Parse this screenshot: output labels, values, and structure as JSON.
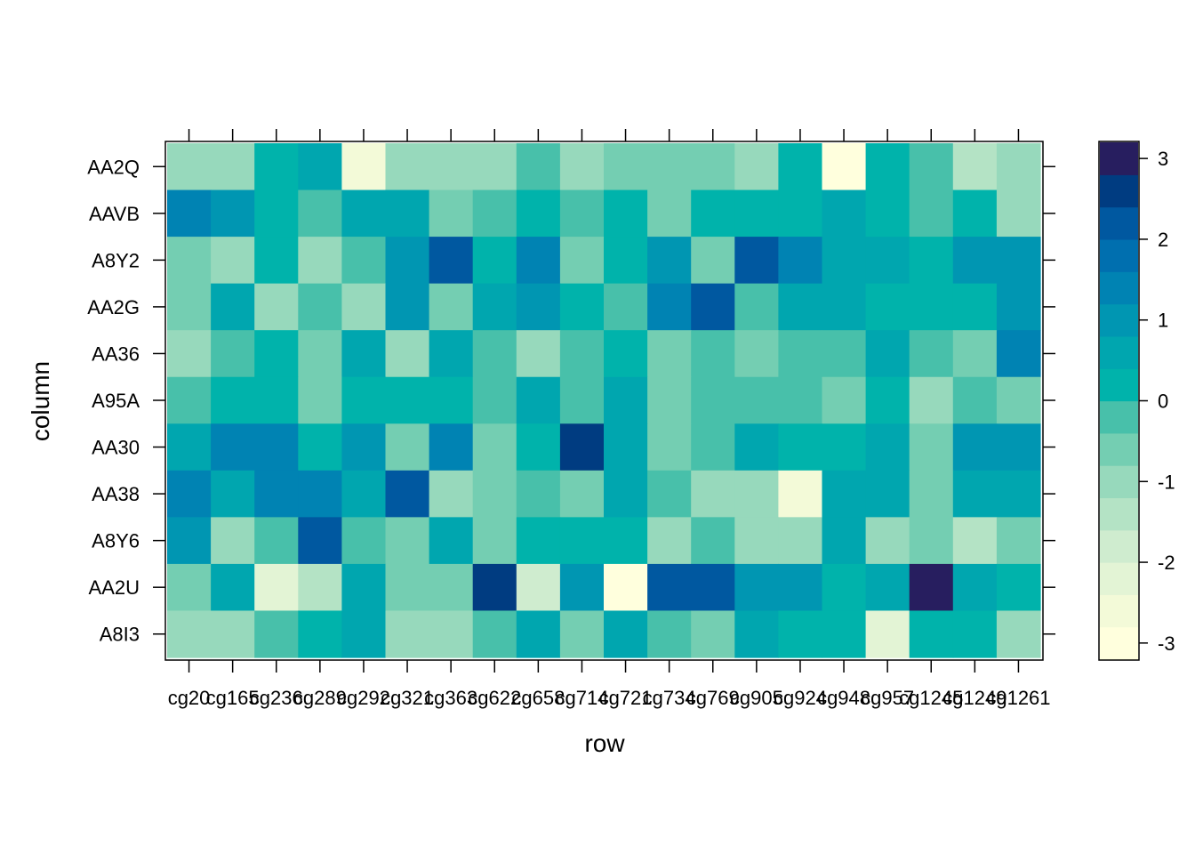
{
  "chart_data": {
    "type": "heatmap",
    "xlabel": "row",
    "ylabel": "column",
    "x_categories": [
      "cg20",
      "cg165",
      "cg236",
      "cg289",
      "cg292",
      "cg321",
      "cg363",
      "cg622",
      "cg658",
      "cg714",
      "cg721",
      "cg734",
      "cg769",
      "cg905",
      "cg924",
      "cg948",
      "cg957",
      "cg1245",
      "cg1249",
      "cg1261"
    ],
    "y_categories": [
      "AA2Q",
      "AAVB",
      "A8Y2",
      "AA2G",
      "AA36",
      "A95A",
      "AA30",
      "AA38",
      "A8Y6",
      "AA2U",
      "A8I3"
    ],
    "z_range": [
      -3.2,
      3.2
    ],
    "colorbar_ticks": [
      3,
      2,
      1,
      0,
      -1,
      -2,
      -3
    ],
    "colorbar_tick_labels": [
      "3",
      "2",
      "1",
      "0",
      "-1",
      "-2",
      "-3"
    ],
    "palette": [
      "#FFFFDD",
      "#F3FAD8",
      "#E3F4D5",
      "#CFECCF",
      "#B4E3C5",
      "#97D9BC",
      "#74CEB2",
      "#48C0AA",
      "#00B3AB",
      "#00A6AF",
      "#0096B2",
      "#0083B3",
      "#006FAF",
      "#0058A0",
      "#003C81",
      "#271E5F"
    ],
    "values": [
      [
        -0.9,
        -1.2,
        0.1,
        0.4,
        -2.7,
        -0.9,
        -0.9,
        -0.9,
        -0.3,
        -1.2,
        -0.6,
        -0.6,
        -0.6,
        -1.2,
        0.1,
        -3.0,
        0.1,
        -0.3,
        -1.5,
        -0.9
      ],
      [
        1.5,
        0.9,
        0.1,
        -0.3,
        0.4,
        0.4,
        -0.6,
        -0.3,
        0.1,
        -0.3,
        0.1,
        -0.6,
        0.1,
        0.1,
        0.1,
        0.4,
        0.1,
        -0.3,
        0.1,
        -0.9
      ],
      [
        -0.6,
        -0.9,
        0.1,
        -0.9,
        -0.3,
        0.9,
        2.0,
        0.1,
        1.5,
        -0.6,
        0.1,
        0.9,
        -0.6,
        2.0,
        1.5,
        0.4,
        0.4,
        0.1,
        0.9,
        0.9
      ],
      [
        -0.6,
        0.4,
        -1.2,
        -0.3,
        -0.9,
        0.9,
        -0.6,
        0.4,
        0.9,
        0.1,
        -0.3,
        1.5,
        2.0,
        -0.3,
        0.6,
        0.6,
        0.1,
        0.1,
        0.1,
        0.9
      ],
      [
        -0.9,
        -0.3,
        0.1,
        -0.6,
        0.4,
        -1.2,
        0.4,
        -0.3,
        -1.2,
        -0.3,
        0.1,
        -0.6,
        -0.3,
        -0.6,
        -0.3,
        -0.3,
        0.4,
        -0.3,
        -0.6,
        1.5
      ],
      [
        -0.3,
        0.1,
        0.1,
        -0.6,
        0.1,
        0.1,
        0.1,
        -0.3,
        0.4,
        -0.3,
        0.4,
        -0.6,
        -0.3,
        -0.3,
        -0.3,
        -0.6,
        0.1,
        -0.9,
        -0.3,
        -0.6
      ],
      [
        0.4,
        1.5,
        1.5,
        0.1,
        0.9,
        -0.6,
        1.5,
        -0.6,
        0.1,
        2.6,
        0.4,
        -0.6,
        -0.3,
        0.4,
        0.1,
        0.1,
        0.4,
        -0.6,
        0.9,
        0.9
      ],
      [
        1.5,
        0.4,
        1.5,
        1.5,
        0.4,
        2.0,
        -0.9,
        -0.6,
        -0.3,
        -0.6,
        0.4,
        -0.3,
        -1.2,
        -0.9,
        -2.7,
        0.4,
        0.4,
        -0.6,
        0.4,
        0.4
      ],
      [
        0.9,
        -0.9,
        -0.3,
        2.0,
        -0.3,
        -0.6,
        0.4,
        -0.6,
        0.1,
        0.1,
        0.1,
        -0.9,
        -0.3,
        -1.2,
        -0.9,
        0.4,
        -1.2,
        -0.6,
        -1.5,
        -0.6
      ],
      [
        -0.6,
        0.4,
        -2.1,
        -1.5,
        0.4,
        -0.6,
        -0.6,
        2.6,
        -1.8,
        0.9,
        -3.0,
        2.0,
        2.0,
        0.9,
        0.9,
        0.1,
        0.4,
        3.1,
        0.4,
        0.1
      ],
      [
        -0.9,
        -1.2,
        -0.3,
        0.1,
        0.4,
        -0.9,
        -0.9,
        -0.3,
        0.4,
        -0.6,
        0.4,
        -0.3,
        -0.6,
        0.4,
        0.1,
        0.1,
        -2.4,
        0.1,
        0.1,
        -1.2
      ]
    ]
  }
}
